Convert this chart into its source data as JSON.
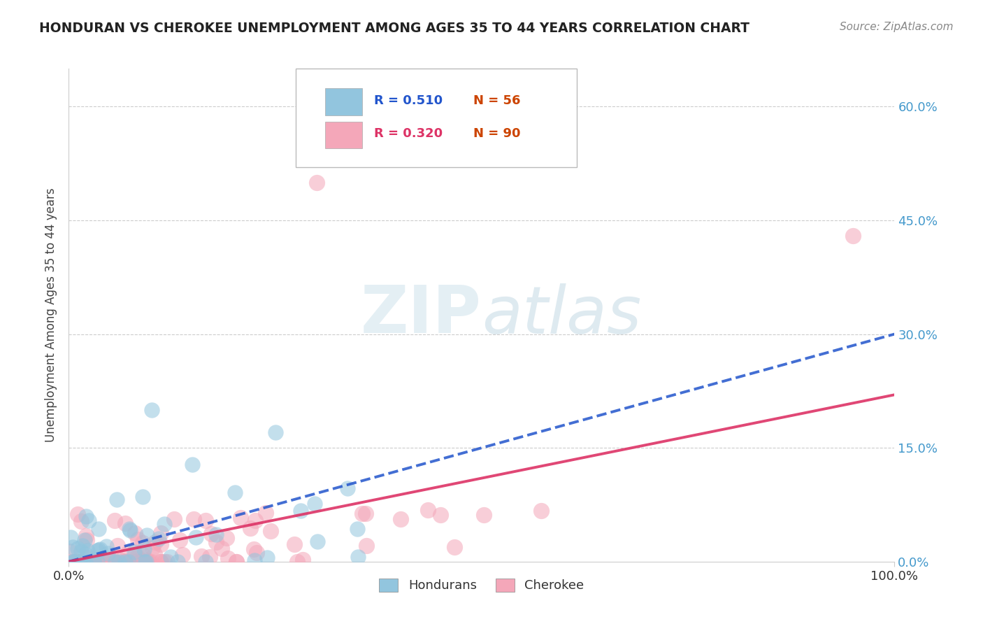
{
  "title": "HONDURAN VS CHEROKEE UNEMPLOYMENT AMONG AGES 35 TO 44 YEARS CORRELATION CHART",
  "source": "Source: ZipAtlas.com",
  "ylabel": "Unemployment Among Ages 35 to 44 years",
  "xlim": [
    0,
    100
  ],
  "ylim": [
    0,
    65
  ],
  "blue_R": 0.51,
  "blue_N": 56,
  "pink_R": 0.32,
  "pink_N": 90,
  "blue_color": "#92c5de",
  "pink_color": "#f4a7b9",
  "blue_line_color": "#2255cc",
  "pink_line_color": "#dd3366",
  "right_tick_color": "#4499cc",
  "watermark_zip": "ZIP",
  "watermark_atlas": "atlas",
  "legend_blue_R": "R = 0.510",
  "legend_blue_N": "N = 56",
  "legend_pink_R": "R = 0.320",
  "legend_pink_N": "N = 90",
  "blue_line_end_y": 30,
  "pink_line_end_y": 22,
  "yticks": [
    0,
    15,
    30,
    45,
    60
  ],
  "ytick_labels": [
    "0.0%",
    "15.0%",
    "30.0%",
    "45.0%",
    "60.0%"
  ]
}
